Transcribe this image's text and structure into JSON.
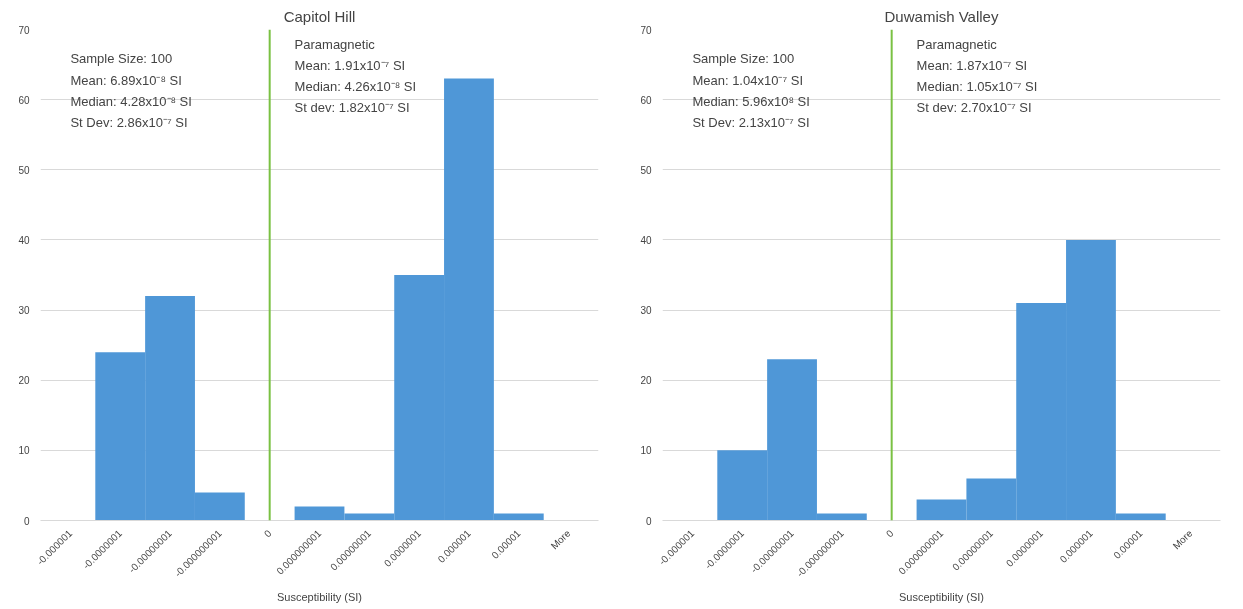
{
  "chart_data": [
    {
      "type": "bar",
      "title": "Capitol Hill",
      "xlabel": "Susceptibility (SI)",
      "categories": [
        "-0.000001",
        "-0.0000001",
        "-0.00000001",
        "-0.000000001",
        "0",
        "0.000000001",
        "0.00000001",
        "0.0000001",
        "0.000001",
        "0.00001",
        "More"
      ],
      "values": [
        0,
        24,
        32,
        4,
        0,
        2,
        1,
        35,
        63,
        1,
        0
      ],
      "color": "#4f97d7",
      "ylim": [
        0,
        70
      ],
      "yticks": [
        0,
        10,
        20,
        30,
        40,
        50,
        60,
        70
      ],
      "grid": "y",
      "ref_lines": [
        {
          "axis": "x",
          "value": "0",
          "label": null,
          "color": "#7ac143"
        }
      ],
      "annotations": [
        "Sample Size: 100",
        "Mean: 6.89x10⁻⁸ SI",
        "Median: 4.28x10⁻⁸ SI",
        "St Dev: 2.86x10⁻⁷ SI",
        "Paramagnetic",
        "Mean: 1.91x10⁻⁷ SI",
        "Median: 4.26x10⁻⁸ SI",
        "St dev: 1.82x10⁻⁷ SI"
      ]
    },
    {
      "type": "bar",
      "title": "Duwamish Valley",
      "xlabel": "Susceptibility (SI)",
      "categories": [
        "-0.000001",
        "-0.0000001",
        "-0.00000001",
        "-0.000000001",
        "0",
        "0.000000001",
        "0.00000001",
        "0.0000001",
        "0.000001",
        "0.00001",
        "More"
      ],
      "values": [
        0,
        10,
        23,
        1,
        0,
        3,
        6,
        31,
        40,
        1,
        0
      ],
      "color": "#4f97d7",
      "ylim": [
        0,
        70
      ],
      "yticks": [
        0,
        10,
        20,
        30,
        40,
        50,
        60,
        70
      ],
      "grid": "y",
      "ref_lines": [
        {
          "axis": "x",
          "value": "0",
          "label": null,
          "color": "#7ac143"
        }
      ],
      "annotations": [
        "Sample Size: 100",
        "Mean:  1.04x10⁻⁷ SI",
        "Median: 5.96x10⁸ SI",
        "St Dev: 2.13x10⁻⁷ SI",
        "Paramagnetic",
        "Mean: 1.87x10⁻⁷ SI",
        "Median: 1.05x10⁻⁷ SI",
        "St dev: 2.70x10⁻⁷ SI"
      ]
    }
  ]
}
